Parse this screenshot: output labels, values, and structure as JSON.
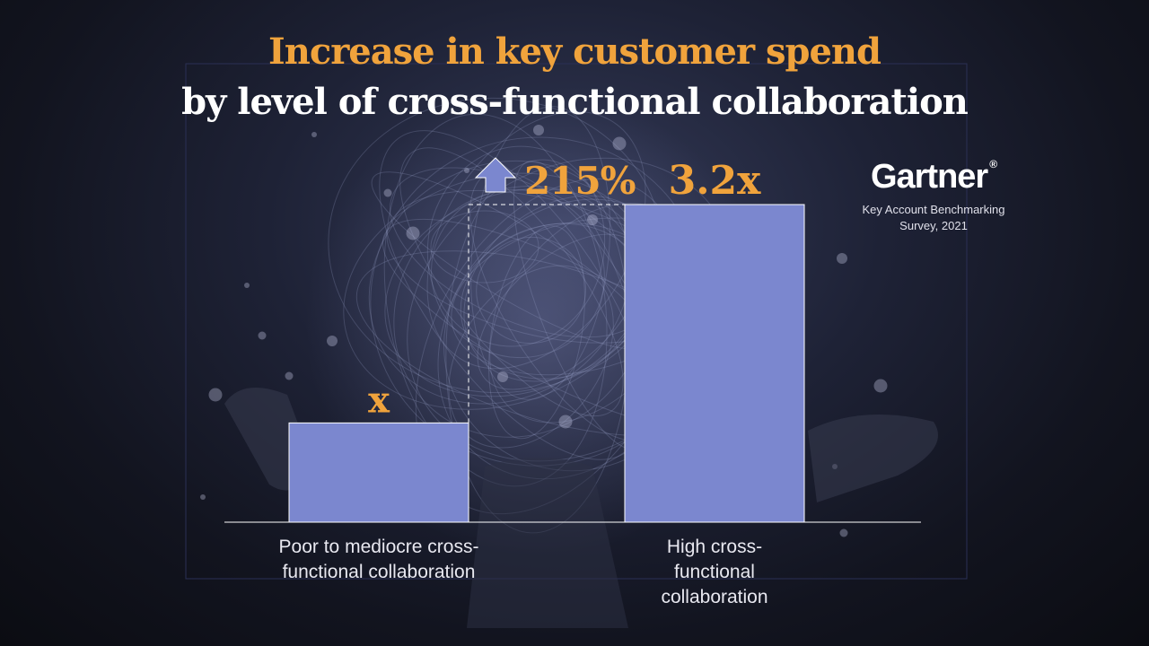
{
  "title": {
    "line1": "Increase in key customer spend",
    "line2": "by level of cross-functional collaboration"
  },
  "brand": {
    "logo_text": "Gartner",
    "source": "Key Account Benchmarking Survey, 2021"
  },
  "colors": {
    "bar": "#7b87cf",
    "accent": "#f0a33c",
    "title_secondary": "#ffffff",
    "axis": "#ffffff"
  },
  "chart_data": {
    "type": "bar",
    "title": "Increase in key customer spend by level of cross-functional collaboration",
    "categories": [
      "Poor to mediocre cross-functional collaboration",
      "High cross-functional collaboration"
    ],
    "values": [
      1,
      3.2
    ],
    "data_labels": [
      "x",
      "3.2x"
    ],
    "annotation": {
      "text": "215%",
      "from_category": 0,
      "to_category": 1,
      "direction": "increase"
    },
    "xlabel": "",
    "ylabel": "",
    "ylim": [
      0,
      3.2
    ],
    "grid": false,
    "legend": "none"
  }
}
